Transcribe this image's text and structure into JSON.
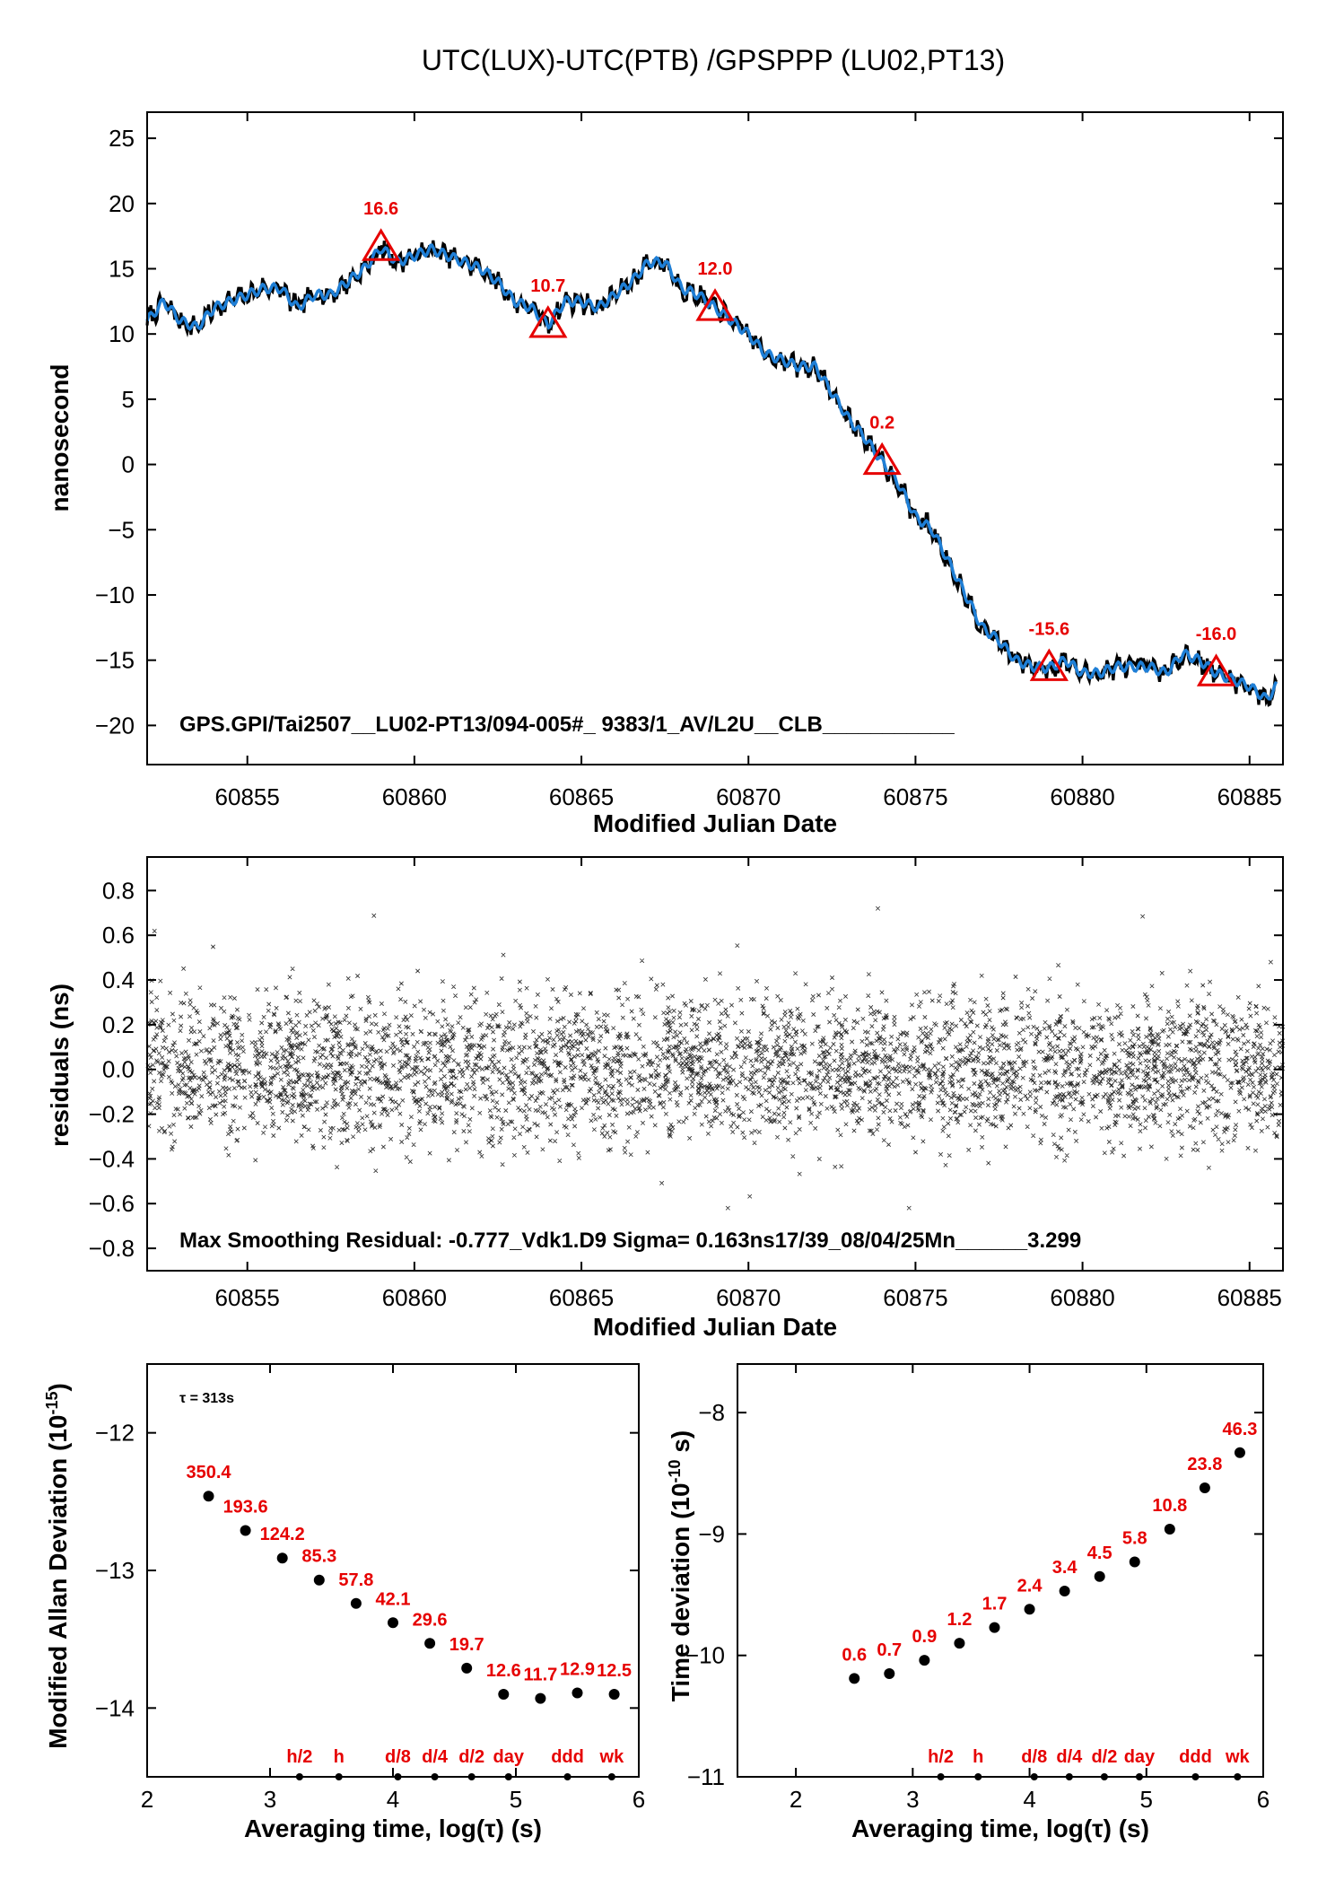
{
  "figure_title": "UTC(LUX)-UTC(PTB)  /GPSPPP  (LU02,PT13)",
  "colors": {
    "series": "#1f7fd6",
    "raw": "#000000",
    "annotation": "#e60000"
  },
  "chart_data": [
    {
      "type": "line",
      "xlabel": "Modified Julian Date",
      "ylabel": "nanosecond",
      "xlim": [
        60852,
        60886
      ],
      "ylim": [
        -23,
        27
      ],
      "xticks": [
        60855,
        60860,
        60865,
        60870,
        60875,
        60880,
        60885
      ],
      "yticks": [
        -20,
        -15,
        -10,
        -5,
        0,
        5,
        10,
        15,
        20,
        25
      ],
      "x": [
        60852.0,
        60852.5,
        60853.0,
        60853.5,
        60854.0,
        60854.5,
        60855.0,
        60855.5,
        60856.0,
        60856.5,
        60857.0,
        60857.5,
        60858.0,
        60858.5,
        60859.0,
        60859.5,
        60860.0,
        60860.5,
        60861.0,
        60861.5,
        60862.0,
        60862.5,
        60863.0,
        60863.5,
        60864.0,
        60864.5,
        60865.0,
        60865.5,
        60866.0,
        60866.5,
        60867.0,
        60867.5,
        60868.0,
        60868.5,
        60869.0,
        60869.5,
        60870.0,
        60870.5,
        60871.0,
        60871.5,
        60872.0,
        60872.5,
        60873.0,
        60873.5,
        60874.0,
        60874.5,
        60875.0,
        60875.5,
        60876.0,
        60876.5,
        60877.0,
        60877.5,
        60878.0,
        60878.5,
        60879.0,
        60879.5,
        60880.0,
        60880.5,
        60881.0,
        60881.5,
        60882.0,
        60882.5,
        60883.0,
        60883.5,
        60884.0,
        60884.5,
        60885.0,
        60885.5,
        60885.8
      ],
      "y": [
        11.0,
        12.5,
        11.0,
        10.5,
        12.0,
        12.5,
        13.0,
        13.5,
        13.5,
        12.0,
        13.0,
        13.0,
        14.0,
        15.0,
        16.6,
        15.5,
        16.0,
        16.5,
        16.0,
        15.5,
        15.0,
        14.0,
        12.5,
        12.0,
        10.7,
        12.5,
        12.5,
        12.0,
        13.0,
        14.0,
        15.5,
        15.5,
        13.5,
        13.0,
        12.0,
        11.0,
        10.0,
        8.5,
        8.0,
        7.5,
        7.5,
        5.5,
        3.5,
        2.0,
        0.2,
        -1.5,
        -4.0,
        -5.0,
        -7.5,
        -10.0,
        -12.5,
        -13.5,
        -15.0,
        -15.5,
        -15.6,
        -15.0,
        -16.0,
        -16.0,
        -15.5,
        -15.5,
        -15.5,
        -16.0,
        -14.5,
        -15.0,
        -16.0,
        -16.5,
        -17.0,
        -18.0,
        -17.0
      ],
      "markers": [
        {
          "x": 60859,
          "y": 16.6,
          "label": "16.6"
        },
        {
          "x": 60864,
          "y": 10.7,
          "label": "10.7"
        },
        {
          "x": 60869,
          "y": 12.0,
          "label": "12.0"
        },
        {
          "x": 60874,
          "y": 0.2,
          "label": "0.2"
        },
        {
          "x": 60879,
          "y": -15.6,
          "label": "-15.6"
        },
        {
          "x": 60884,
          "y": -16.0,
          "label": "-16.0"
        }
      ],
      "info_text": "GPS.GPI/Tai2507__LU02-PT13/094-005#_  9383/1_AV/L2U__CLB___________"
    },
    {
      "type": "scatter",
      "xlabel": "Modified Julian Date",
      "ylabel": "residuals (ns)",
      "xlim": [
        60852,
        60886
      ],
      "ylim": [
        -0.9,
        0.95
      ],
      "xticks": [
        60855,
        60860,
        60865,
        60870,
        60875,
        60880,
        60885
      ],
      "yticks": [
        -0.8,
        -0.6,
        -0.4,
        -0.2,
        0.0,
        0.2,
        0.4,
        0.6,
        0.8
      ],
      "ytick_labels": [
        "−0.8",
        "−0.6",
        "−0.4",
        "−0.2",
        "0.0",
        "0.2",
        "0.4",
        "0.6",
        "0.8"
      ],
      "sigma": 0.163,
      "max_residual": -0.777,
      "info_text": "Max Smoothing Residual: -0.777_Vdk1.D9  Sigma= 0.163ns17/39_08/04/25Mn______3.299"
    },
    {
      "type": "scatter",
      "xlabel": "Averaging time, log(τ) (s)",
      "ylabel": "Modified Allan Deviation (10",
      "ylabel_sup": "-15",
      "ylabel_end": ")",
      "xlim": [
        2,
        6
      ],
      "ylim": [
        -14.5,
        -11.5
      ],
      "xticks": [
        2,
        3,
        4,
        5,
        6
      ],
      "yticks": [
        -14,
        -13,
        -12
      ],
      "ytick_labels": [
        "−14",
        "−13",
        "−12"
      ],
      "tau_note": "τ = 313s",
      "x": [
        2.5,
        2.8,
        3.1,
        3.4,
        3.7,
        4.0,
        4.3,
        4.6,
        4.9,
        5.2,
        5.5,
        5.8
      ],
      "y": [
        -12.46,
        -12.71,
        -12.91,
        -13.07,
        -13.24,
        -13.38,
        -13.53,
        -13.71,
        -13.9,
        -13.93,
        -13.89,
        -13.9
      ],
      "labels": [
        "350.4",
        "193.6",
        "124.2",
        "85.3",
        "57.8",
        "42.1",
        "29.6",
        "19.7",
        "12.6",
        "11.7",
        "12.9",
        "12.5"
      ],
      "time_marks": [
        {
          "x": 3.24,
          "label": "h/2"
        },
        {
          "x": 3.56,
          "label": "h"
        },
        {
          "x": 4.04,
          "label": "d/8"
        },
        {
          "x": 4.34,
          "label": "d/4"
        },
        {
          "x": 4.64,
          "label": "d/2"
        },
        {
          "x": 4.94,
          "label": "day"
        },
        {
          "x": 5.42,
          "label": "ddd"
        },
        {
          "x": 5.78,
          "label": "wk"
        }
      ]
    },
    {
      "type": "scatter",
      "xlabel": "Averaging time, log(τ) (s)",
      "ylabel": "Time deviation (10",
      "ylabel_sup": "-10",
      "ylabel_end": " s)",
      "xlim": [
        1.5,
        6
      ],
      "ylim": [
        -11,
        -7.6
      ],
      "xticks": [
        2,
        3,
        4,
        5,
        6
      ],
      "yticks": [
        -11,
        -10,
        -9,
        -8
      ],
      "ytick_labels": [
        "−11",
        "−10",
        "−9",
        "−8"
      ],
      "x": [
        2.5,
        2.8,
        3.1,
        3.4,
        3.7,
        4.0,
        4.3,
        4.6,
        4.9,
        5.2,
        5.5,
        5.8
      ],
      "y": [
        -10.19,
        -10.15,
        -10.04,
        -9.9,
        -9.77,
        -9.62,
        -9.47,
        -9.35,
        -9.23,
        -8.96,
        -8.62,
        -8.33
      ],
      "labels": [
        "0.6",
        "0.7",
        "0.9",
        "1.2",
        "1.7",
        "2.4",
        "3.4",
        "4.5",
        "5.8",
        "10.8",
        "23.8",
        "46.3"
      ],
      "time_marks": [
        {
          "x": 3.24,
          "label": "h/2"
        },
        {
          "x": 3.56,
          "label": "h"
        },
        {
          "x": 4.04,
          "label": "d/8"
        },
        {
          "x": 4.34,
          "label": "d/4"
        },
        {
          "x": 4.64,
          "label": "d/2"
        },
        {
          "x": 4.94,
          "label": "day"
        },
        {
          "x": 5.42,
          "label": "ddd"
        },
        {
          "x": 5.78,
          "label": "wk"
        }
      ]
    }
  ]
}
